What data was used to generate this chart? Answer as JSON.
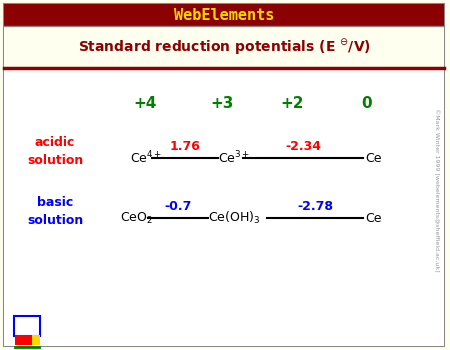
{
  "title_bar_text": "WebElements",
  "title_bar_bg": "#8B0000",
  "title_bar_fg": "#FFD700",
  "subtitle_fg": "#8B0000",
  "main_bg": "#FFFFF0",
  "body_bg": "#FFFFFF",
  "border_color": "#888888",
  "dark_red_line": "#8B0000",
  "oxidation_states": [
    "+4",
    "+3",
    "+2",
    "0"
  ],
  "ox_color": "#008000",
  "acidic_color": "#FF0000",
  "basic_color": "#0000FF",
  "watermark": "©Mark Winter 1999 [webelements@sheffield.ac.uk]"
}
